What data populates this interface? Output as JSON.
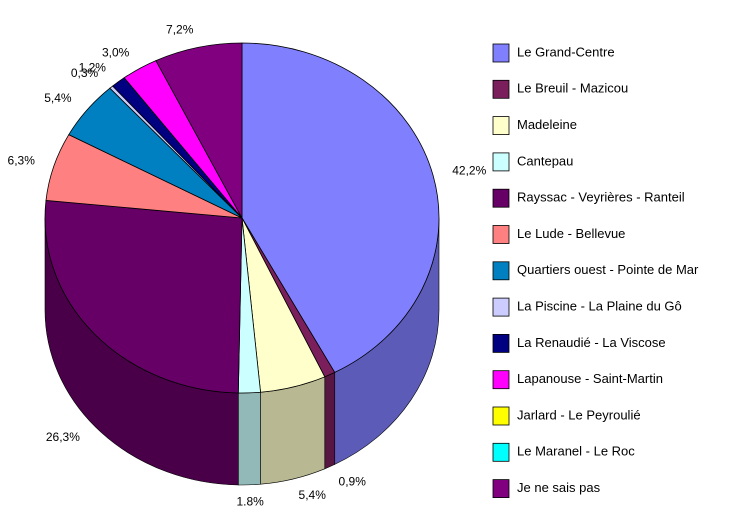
{
  "chart_data": {
    "type": "pie3d",
    "categories": [
      "Le Grand-Centre",
      "Le Breuil - Mazicou",
      "Madeleine",
      "Cantepau",
      "Rayssac - Veyrières - Ranteil",
      "Le Lude - Bellevue",
      "Quartiers ouest - Pointe de Mar",
      "La Piscine - La Plaine du Gô",
      "La Renaudié - La Viscose",
      "Lapanouse - Saint-Martin",
      "Jarlard - Le Peyroulié",
      "Le Maranel - Le Roc",
      "Je ne sais pas"
    ],
    "values": [
      42.2,
      0.9,
      5.4,
      1.8,
      26.3,
      6.3,
      5.4,
      0.3,
      1.2,
      3.0,
      0,
      0,
      7.2
    ],
    "value_labels": [
      "42,2%",
      "0,9%",
      "5,4%",
      "1.8%",
      "26,3%",
      "6,3%",
      "5,4%",
      "0,3%",
      "1,2%",
      "3,0%",
      null,
      null,
      "7,2%"
    ],
    "colors": [
      "#8080ff",
      "#7a1f5c",
      "#ffffcc",
      "#ccffff",
      "#660066",
      "#ff8080",
      "#0080c0",
      "#ccccff",
      "#000080",
      "#ff00ff",
      "#ffff00",
      "#00ffff",
      "#800080"
    ],
    "legend": "right"
  }
}
